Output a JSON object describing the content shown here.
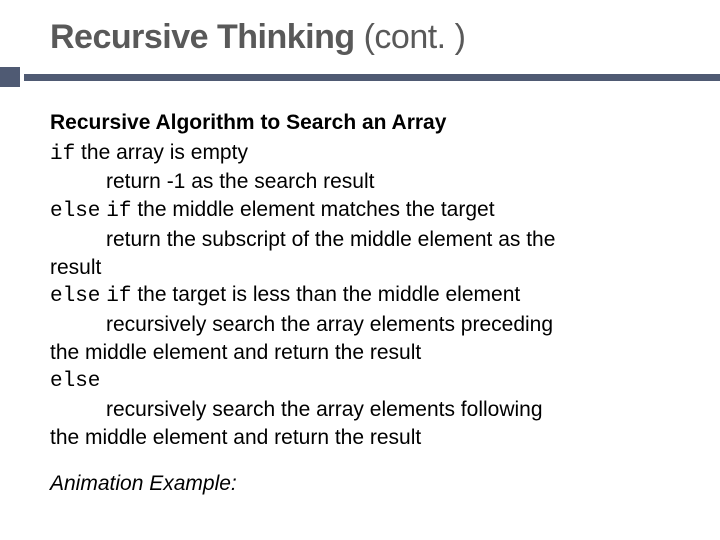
{
  "colors": {
    "accent": "#4f5a73",
    "title": "#595959",
    "text": "#000000",
    "background": "#ffffff"
  },
  "title": {
    "bold": "Recursive Thinking",
    "rest": " (cont. )"
  },
  "subtitle": "Recursive Algorithm to Search an Array",
  "algo": {
    "l1_kw": "if",
    "l1_txt": " the array is empty",
    "l2": "return -1 as the search result",
    "l3_kw1": "else",
    "l3_kw2": "if",
    "l3_txt": "the middle element matches the target",
    "l4a": "return the subscript of the middle element as the",
    "l4b": "result",
    "l5_kw1": "else",
    "l5_kw2": "if",
    "l5_txt": "the target is less than the middle element",
    "l6a": "recursively search the array elements preceding",
    "l6b": "the middle element and return the result",
    "l7_kw": "else",
    "l8a": "recursively search the array elements following",
    "l8b": "the middle element and return the result"
  },
  "footer": "Animation Example:"
}
